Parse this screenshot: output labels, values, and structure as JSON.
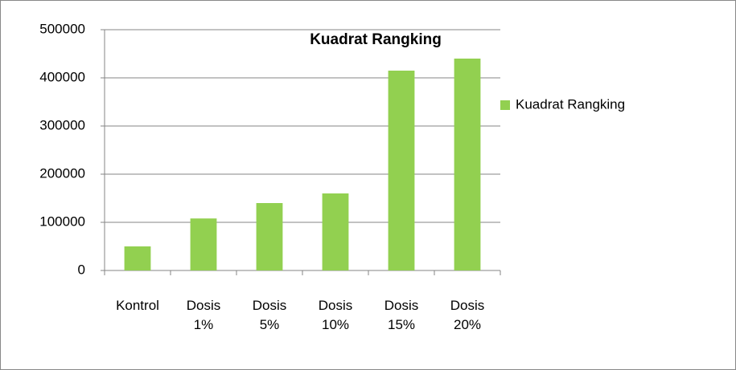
{
  "chart_data": {
    "type": "bar",
    "title": "Kuadrat Rangking",
    "categories": [
      "Kontrol",
      "Dosis 1%",
      "Dosis 5%",
      "Dosis 10%",
      "Dosis 15%",
      "Dosis 20%"
    ],
    "series": [
      {
        "name": "Kuadrat Rangking",
        "color": "#92d050",
        "values": [
          50000,
          108000,
          140000,
          160000,
          415000,
          440000
        ]
      }
    ],
    "ylim": [
      0,
      500000
    ],
    "yticks": [
      0,
      100000,
      200000,
      300000,
      400000,
      500000
    ],
    "grid": true,
    "legend": "right"
  }
}
